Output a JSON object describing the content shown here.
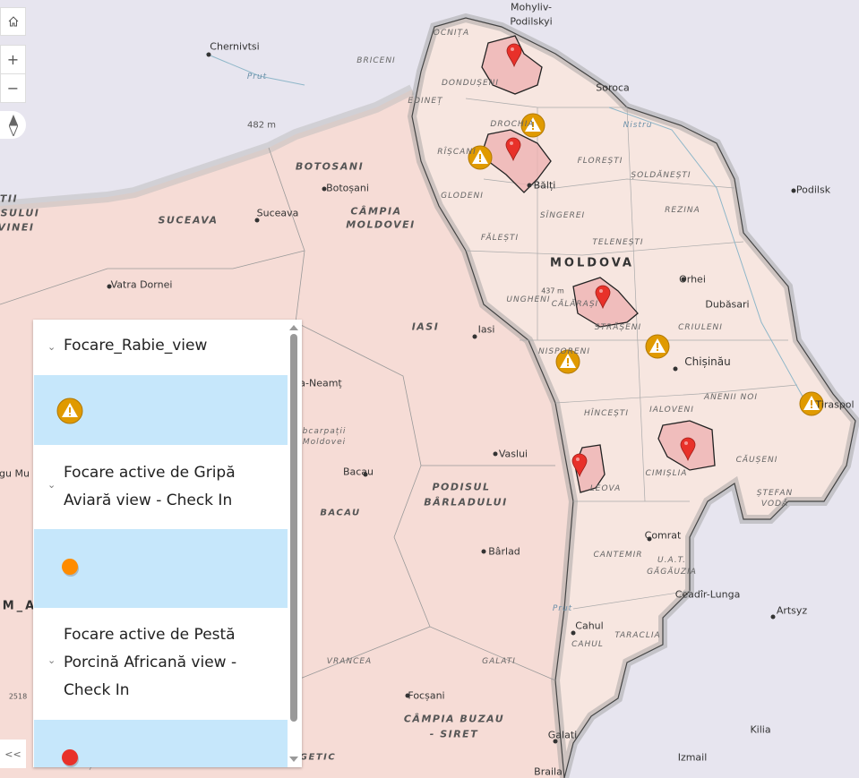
{
  "map": {
    "labels": [
      "Mohyliv-",
      "Podilskyi",
      "Chernivtsi",
      "OCNIȚA",
      "BRICENI",
      "DONDUȘENI",
      "Soroca",
      "EDINEȚ",
      "482 m",
      "Nistru",
      "DROCHIA",
      "RÎȘCANI",
      "FLOREȘTI",
      "ȘOLDĂNEȘTI",
      "BOTOSANI",
      "Botoșani",
      "Bălți",
      "Podilsk",
      "GLODENI",
      "CÂMPIA",
      "MOLDOVEI",
      "SUCEAVA",
      "Suceava",
      "SÎNGEREI",
      "REZINA",
      "FĂLEȘTI",
      "TELENEȘTI",
      "MOLDOVA",
      "Orhei",
      "Vatra Dornei",
      "UNGHENI",
      "437 m",
      "CĂLĂRAȘI",
      "Dubăsari",
      "IASI",
      "Iasi",
      "STRĂȘENI",
      "CRIULENI",
      "NISPORENI",
      "Chișinău",
      "ANENII NOI",
      "HÎNCEȘTI",
      "IALOVENI",
      "Tiraspol",
      "Vaslui",
      "CĂUȘENI",
      "Bacau",
      "CIMIȘLIA",
      "LEOVA",
      "PODISUL",
      "BÂRLADULUI",
      "ȘTEFAN",
      "VODĂ",
      "Bârlad",
      "Comrat",
      "CANTEMIR",
      "U.A.T.",
      "GĂGĂUZIA",
      "BACAU",
      "Ceadîr-Lunga",
      "Artsyz",
      "Cahul",
      "CAHUL",
      "TARACLIA",
      "VRANCEA",
      "GALATI",
      "Focșani",
      "CÂMPIA BUZAU",
      "- SIRET",
      "Galati",
      "Izmail",
      "Kilia",
      "Braila",
      "Prut",
      "Prut",
      "a-Neamț",
      "bcarpații",
      "Moldovei",
      "M_A",
      "TII",
      "ESULUI",
      "VINEI",
      "gu Mu",
      "2518",
      "GETIC"
    ],
    "markers": {
      "rabies_icon": "warning-triangle",
      "rabies_color": "#e09a00",
      "avian_color": "#ff8c00",
      "swine_color": "#e8312a"
    }
  },
  "controls": {
    "home_icon": "home-icon",
    "zoom_in": "+",
    "zoom_out": "−",
    "compass_icon": "compass-icon",
    "collapse": "<<"
  },
  "legend": {
    "layers": [
      {
        "title": "Focare_Rabie_view",
        "symbol": "warning-circle",
        "color": "#e09a00"
      },
      {
        "title_lines": [
          "Focare active de Gripă",
          "Aviară view - Check In"
        ],
        "symbol": "orange-dot",
        "color": "#ff8c00"
      },
      {
        "title_lines": [
          "Focare active de Pestă",
          "Porcină Africană view -",
          "Check In"
        ],
        "symbol": "red-dot",
        "color": "#e8312a"
      }
    ],
    "selected_bg": "#c6e7fb"
  }
}
